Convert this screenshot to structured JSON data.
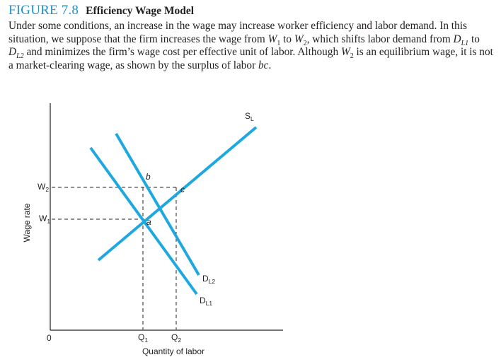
{
  "figure": {
    "number": "FIGURE 7.8",
    "title": "Efficiency Wage Model",
    "caption_parts": [
      "Under some conditions, an increase in the wage may increase worker efficiency and labor demand. In this situation, we suppose that the firm increases the wage from ",
      "W",
      "1",
      " to ",
      "W",
      "2",
      ", which shifts labor demand from ",
      "D",
      "L1",
      " to ",
      "D",
      "L2",
      " and minimizes the firm’s wage cost per effective unit of labor. Although ",
      "W",
      "2",
      " is an equilibrium wage, it is not a market-clearing wage, as shown by the surplus of labor ",
      "bc",
      "."
    ]
  },
  "diagram": {
    "x_axis_label": "Quantity of labor",
    "y_axis_label": "Wage rate",
    "origin_label": "0",
    "x_ticks": [
      {
        "base": "Q",
        "sub": "1"
      },
      {
        "base": "Q",
        "sub": "2"
      }
    ],
    "y_ticks": [
      {
        "base": "W",
        "sub": "2"
      },
      {
        "base": "W",
        "sub": "1"
      }
    ],
    "curves": {
      "supply": {
        "base": "S",
        "sub": "L"
      },
      "demand_1": {
        "base": "D",
        "sub": "L1"
      },
      "demand_2": {
        "base": "D",
        "sub": "L2"
      }
    },
    "points": {
      "a": "a",
      "b": "b",
      "c": "c"
    },
    "curve_color": "#1ea8e0"
  }
}
